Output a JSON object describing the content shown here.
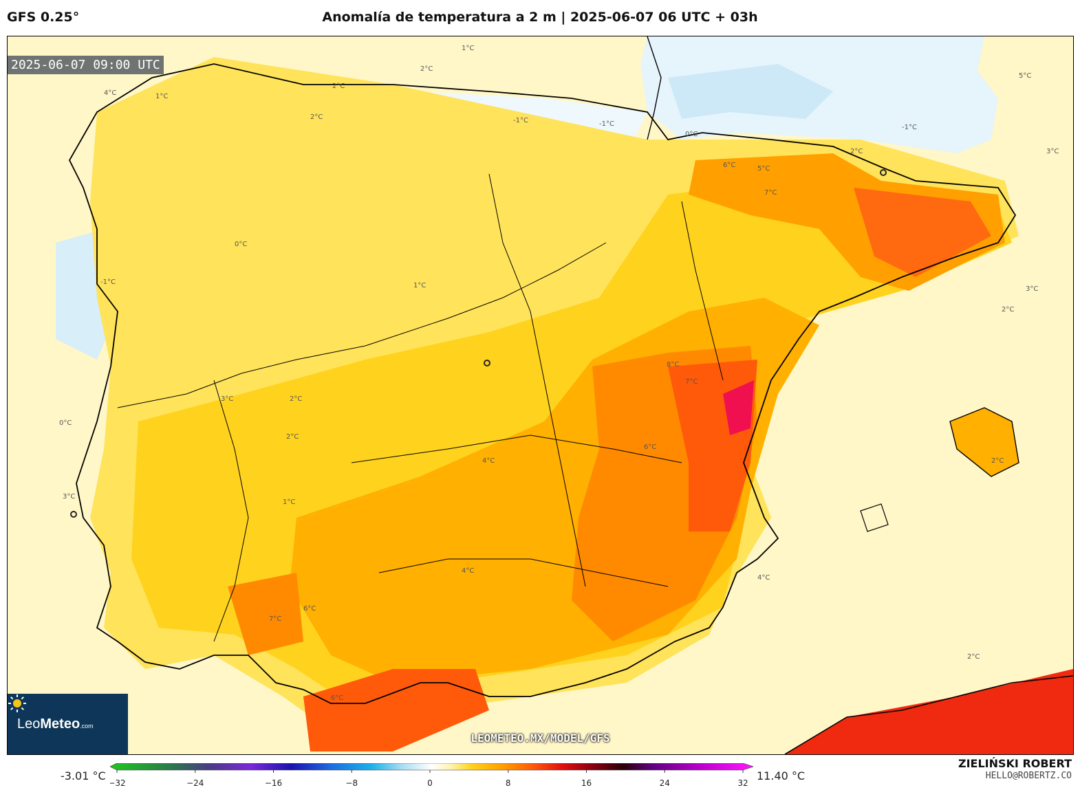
{
  "header": {
    "model": "GFS 0.25°",
    "title": "Anomalía de temperatura a 2 m | 2025-06-07 06 UTC + 03h"
  },
  "map": {
    "timestamp": "2025-06-07 09:00 UTC",
    "watermark": "LEOMETEO.MX/MODEL/GFS",
    "contour_labels": [
      "1°C",
      "2°C",
      "4°C",
      "2°C",
      "1°C",
      "2°C",
      "-1°C",
      "-1°C",
      "-1°C",
      "0°C",
      "6°C",
      "5°C",
      "7°C",
      "8°C",
      "7°C",
      "6°C",
      "4°C",
      "3°C",
      "2°C",
      "0°C",
      "3°C",
      "1°C",
      "7°C",
      "6°C",
      "6°C",
      "4°C",
      "2°C",
      "2°C",
      "3°C",
      "2°C",
      "-1°C",
      "0°C",
      "1°C",
      "5°C",
      "4°C",
      "2°C",
      "2°C",
      "3°C"
    ]
  },
  "logo": {
    "brand_light": "Leo",
    "brand_bold": "Meteo",
    "suffix": ".com"
  },
  "colorbar": {
    "min_value": "-3.01 °C",
    "max_value": "11.40 °C",
    "ticks": [
      "−32",
      "−24",
      "−16",
      "−8",
      "0",
      "8",
      "16",
      "24",
      "32"
    ],
    "range": [
      -32,
      32
    ],
    "stops": [
      {
        "v": -32,
        "c": "#1ec81e"
      },
      {
        "v": -26,
        "c": "#2a7a4a"
      },
      {
        "v": -22,
        "c": "#4b3a86"
      },
      {
        "v": -18,
        "c": "#7a2ad8"
      },
      {
        "v": -14,
        "c": "#1a12b0"
      },
      {
        "v": -10,
        "c": "#1f6be0"
      },
      {
        "v": -6,
        "c": "#1ab2e8"
      },
      {
        "v": -3,
        "c": "#a9dcf2"
      },
      {
        "v": 0,
        "c": "#ffffff"
      },
      {
        "v": 2,
        "c": "#fff2a8"
      },
      {
        "v": 4,
        "c": "#ffd21e"
      },
      {
        "v": 7,
        "c": "#ffa000"
      },
      {
        "v": 10,
        "c": "#ff5a0a"
      },
      {
        "v": 13,
        "c": "#e0100e"
      },
      {
        "v": 16,
        "c": "#8a0010"
      },
      {
        "v": 19,
        "c": "#2a0008"
      },
      {
        "v": 22,
        "c": "#600080"
      },
      {
        "v": 27,
        "c": "#c000d0"
      },
      {
        "v": 32,
        "c": "#ff18ff"
      }
    ]
  },
  "credit": {
    "name": "ZIELIŃSKI ROBERT",
    "email": "HELLO@ROBERTZ.CO"
  },
  "colors": {
    "frame": "#000000",
    "logo_bg": "#0d3658"
  }
}
